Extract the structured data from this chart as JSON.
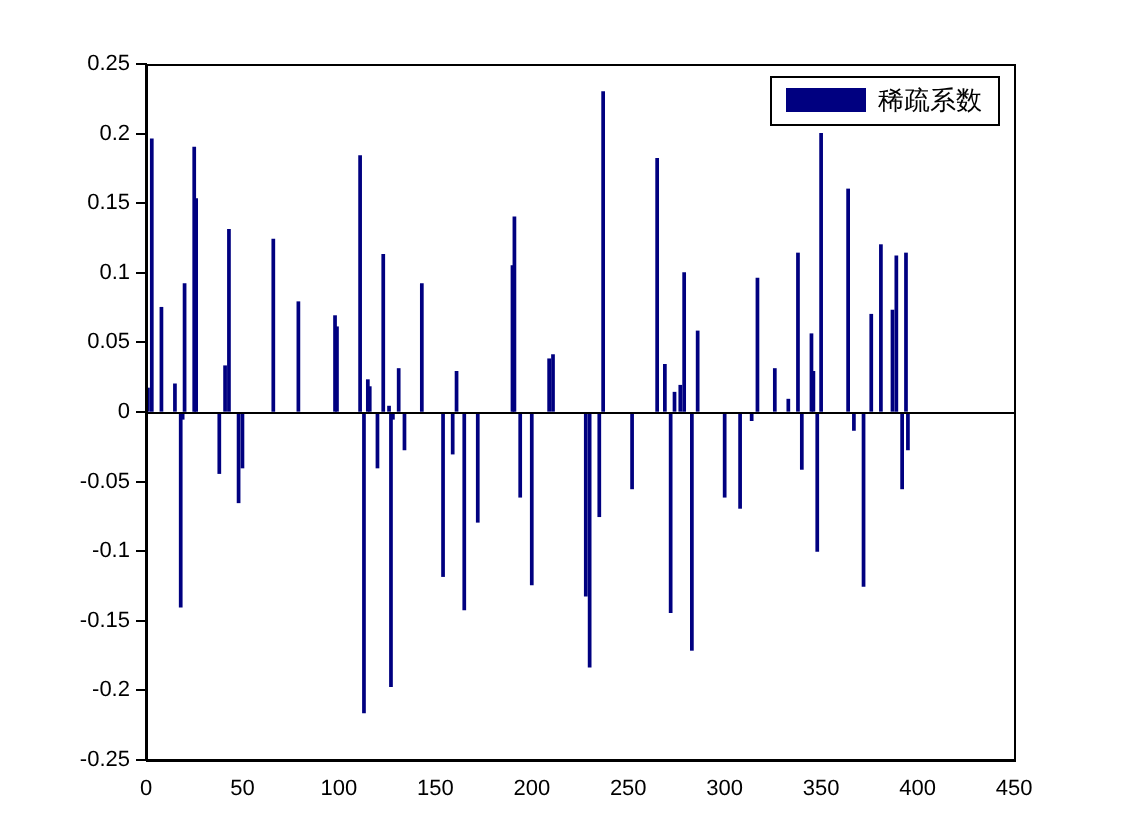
{
  "chart_data": {
    "type": "bar",
    "legend": "top right",
    "grid": false,
    "x": [
      1,
      3,
      8,
      15,
      18,
      19,
      20,
      25,
      26,
      38,
      41,
      43,
      48,
      50,
      66,
      79,
      98,
      99,
      111,
      113,
      115,
      116,
      120,
      123,
      126,
      127,
      128,
      131,
      134,
      143,
      154,
      159,
      161,
      165,
      172,
      190,
      191,
      194,
      200,
      209,
      211,
      228,
      230,
      235,
      237,
      252,
      265,
      269,
      272,
      274,
      277,
      279,
      283,
      286,
      300,
      308,
      314,
      317,
      326,
      333,
      338,
      340,
      345,
      346,
      348,
      350,
      364,
      367,
      372,
      376,
      381,
      387,
      389,
      392,
      394,
      395
    ],
    "series": [
      {
        "name": "稀疏系数",
        "color": "#000080",
        "values": [
          0.017,
          0.196,
          0.075,
          0.02,
          -0.14,
          -0.005,
          0.092,
          0.19,
          0.153,
          -0.044,
          0.033,
          0.131,
          -0.065,
          -0.04,
          0.124,
          0.079,
          0.069,
          0.061,
          0.184,
          -0.216,
          0.023,
          0.018,
          -0.04,
          0.113,
          0.004,
          -0.197,
          -0.005,
          0.031,
          -0.027,
          0.092,
          -0.118,
          -0.03,
          0.029,
          -0.142,
          -0.079,
          0.105,
          0.14,
          -0.061,
          -0.124,
          0.038,
          0.041,
          -0.132,
          -0.183,
          -0.075,
          0.23,
          -0.055,
          0.182,
          0.034,
          -0.144,
          0.014,
          0.019,
          0.1,
          -0.171,
          0.058,
          -0.061,
          -0.069,
          -0.006,
          0.096,
          0.031,
          0.009,
          0.114,
          -0.041,
          0.056,
          0.029,
          -0.1,
          0.2,
          0.16,
          -0.013,
          -0.125,
          0.07,
          0.12,
          0.073,
          0.112,
          -0.055,
          0.114,
          -0.027
        ]
      }
    ],
    "xlim": [
      0,
      450
    ],
    "xticks": [
      0,
      50,
      100,
      150,
      200,
      250,
      300,
      350,
      400,
      450
    ],
    "ylim": [
      -0.25,
      0.25
    ],
    "yticks": [
      -0.25,
      -0.2,
      -0.15,
      -0.1,
      -0.05,
      0,
      0.05,
      0.1,
      0.15,
      0.2,
      0.25
    ],
    "ref_lines": [
      {
        "axis": "y",
        "value": 0,
        "color": "#000000"
      }
    ]
  }
}
